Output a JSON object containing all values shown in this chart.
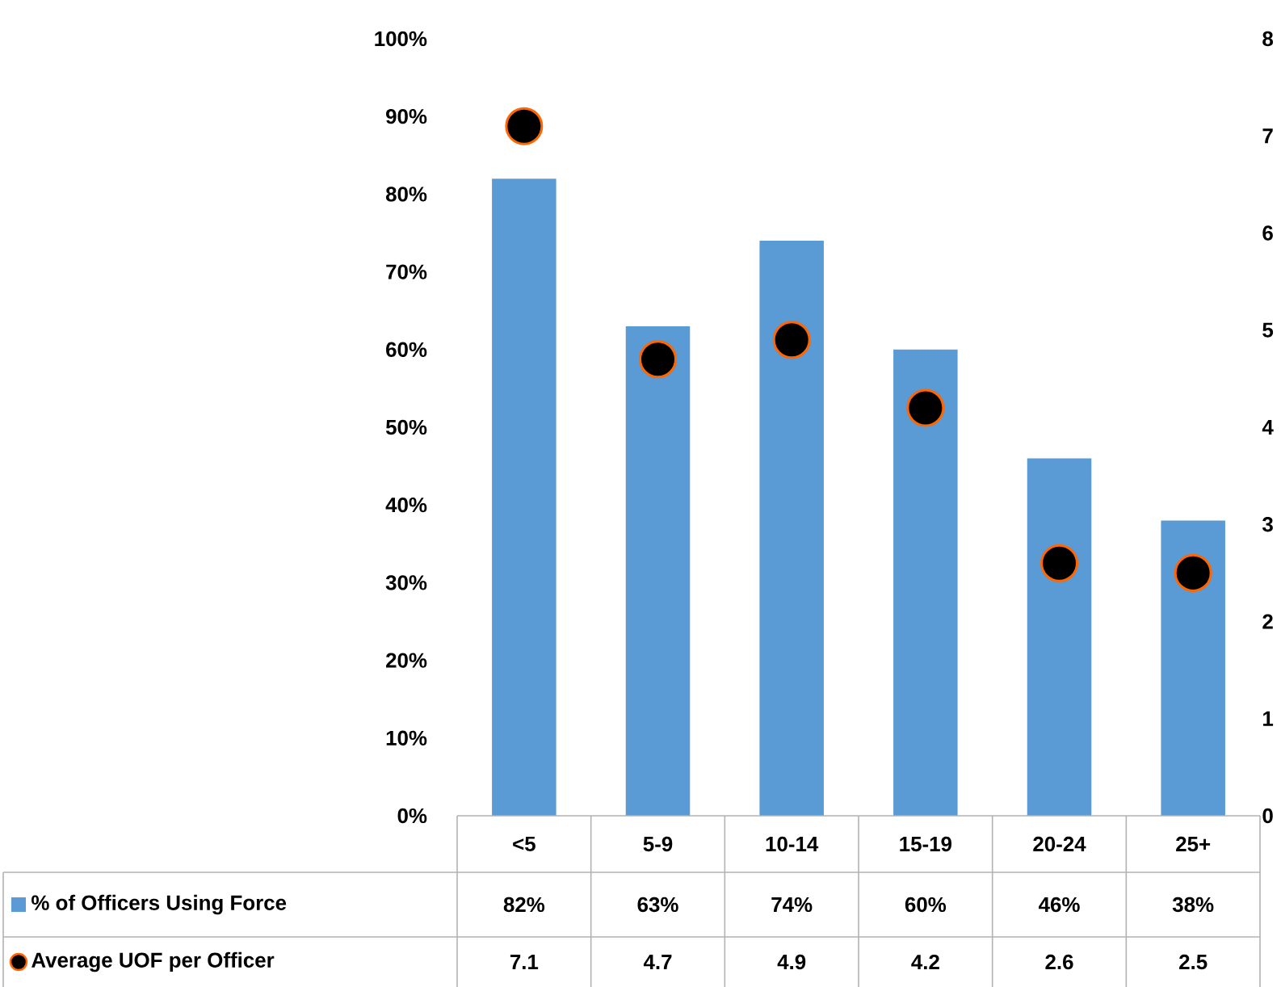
{
  "chart_data": {
    "type": "bar",
    "categories": [
      "<5",
      "5-9",
      "10-14",
      "15-19",
      "20-24",
      "25+"
    ],
    "series": [
      {
        "name": "% of Officers Using Force",
        "color": "#5b9bd5",
        "values": [
          82,
          63,
          74,
          60,
          46,
          38
        ],
        "value_labels": [
          "82%",
          "63%",
          "74%",
          "60%",
          "46%",
          "38%"
        ]
      },
      {
        "name": "Average UOF per Officer",
        "type": "scatter",
        "axis": "y2",
        "color": "#000000",
        "marker": "circle",
        "values": [
          7.1,
          4.7,
          4.9,
          4.2,
          2.6,
          2.5
        ],
        "value_labels": [
          "7.1",
          "4.7",
          "4.9",
          "4.2",
          "2.6",
          "2.5"
        ]
      }
    ],
    "ylim": [
      0,
      100
    ],
    "yticks": [
      {
        "value": 0,
        "label": "0%"
      },
      {
        "value": 10,
        "label": "10%"
      },
      {
        "value": 20,
        "label": "20%"
      },
      {
        "value": 30,
        "label": "30%"
      },
      {
        "value": 40,
        "label": "40%"
      },
      {
        "value": 50,
        "label": "50%"
      },
      {
        "value": 60,
        "label": "60%"
      },
      {
        "value": 70,
        "label": "70%"
      },
      {
        "value": 80,
        "label": "80%"
      },
      {
        "value": 90,
        "label": "90%"
      },
      {
        "value": 100,
        "label": "100%"
      }
    ],
    "y2lim": [
      0,
      8
    ],
    "y2ticks": [
      0,
      1,
      2,
      3,
      4,
      5,
      6,
      7,
      8
    ],
    "legend": "bottom",
    "grid": false
  }
}
